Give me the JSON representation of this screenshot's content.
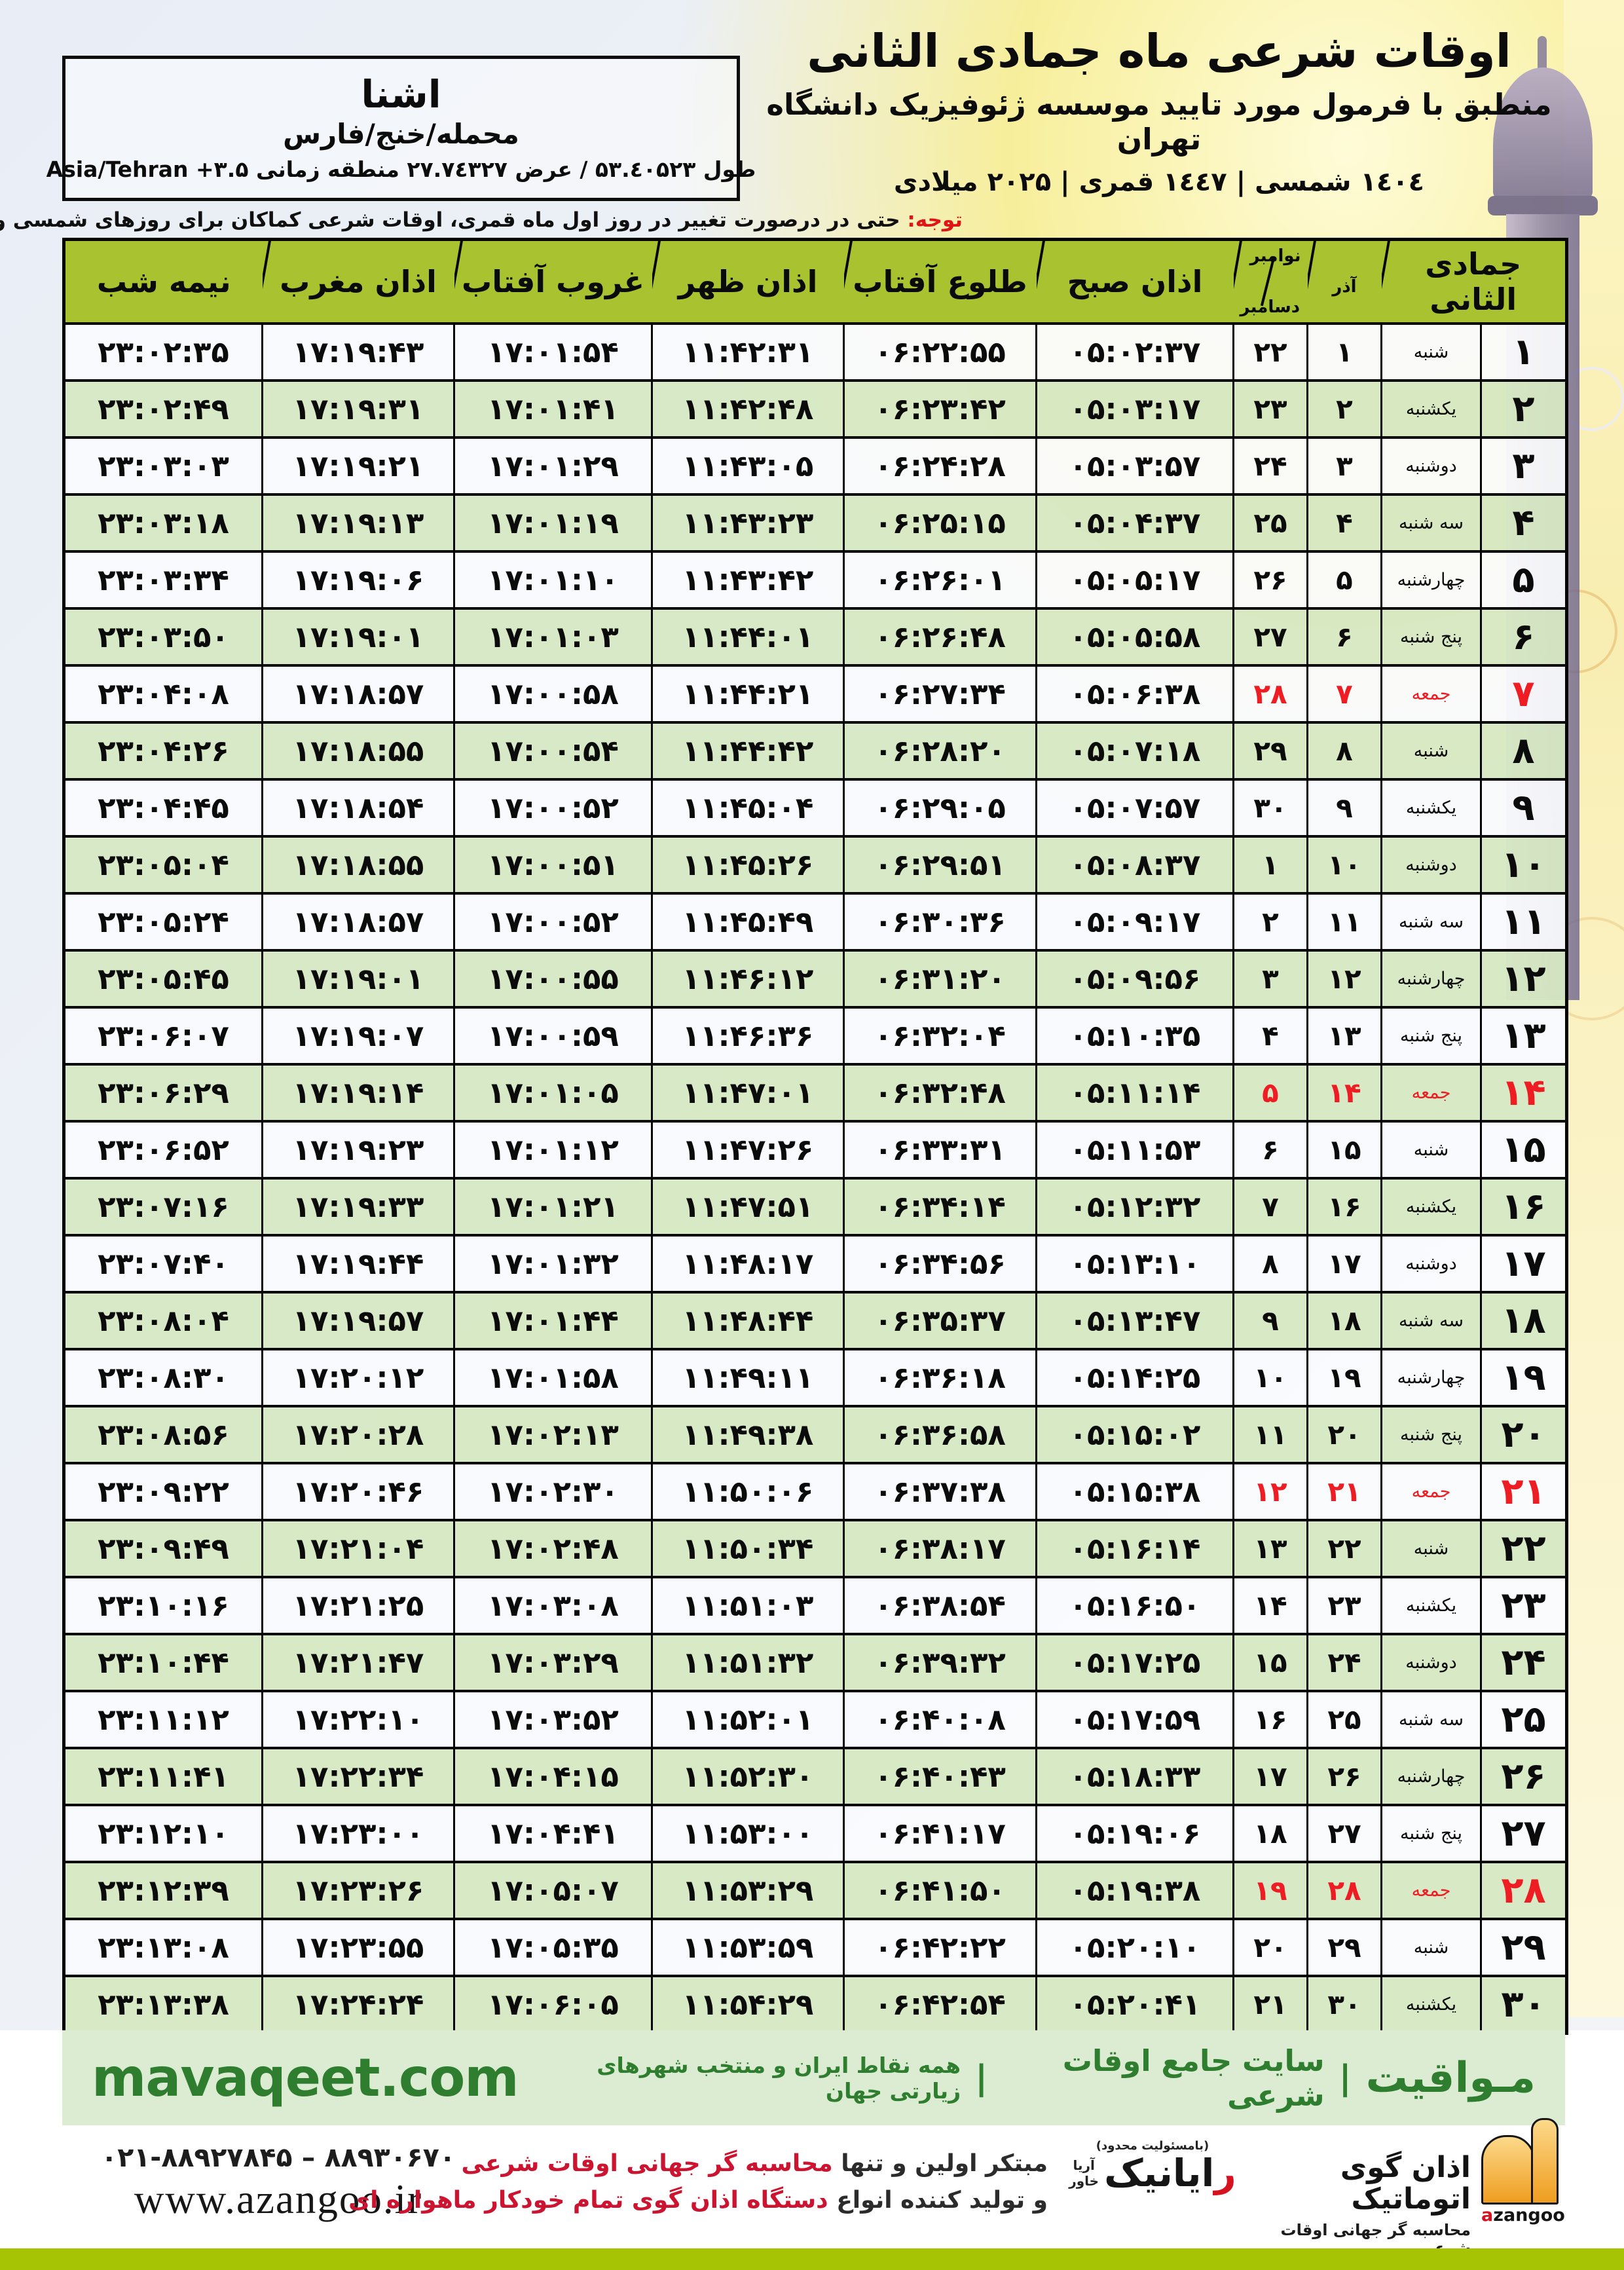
{
  "location": {
    "name": "اشنا",
    "region": "محمله/خنج/فارس",
    "coords_fa": "طول ۵۳.٤۰۵۲۳ / عرض ۲۷.۷٤۳۲۷ منطقه زمانی",
    "coords_en": "Asia/Tehran +۳.۵"
  },
  "title": {
    "main": "اوقات شرعی ماه جمادی الثانی",
    "subtitle": "منطبق با فرمول مورد تایید موسسه ژئوفیزیک دانشگاه تهران",
    "years": "۱٤۰٤ شمسی | ۱٤٤۷ قمری | ۲۰۲۵ میلادی"
  },
  "notice": {
    "label": "توجه:",
    "text": " حتی در درصورت تغییر در روز اول ماه قمری، اوقات شرعی کماکان برای روزهای شمسی و میلادی معتبر است."
  },
  "table": {
    "headers": {
      "jamadi": "جمادی الثانی",
      "azar": "آذر",
      "nov": "نوامبر",
      "dec": "دسامبر",
      "sobh": "اذان صبح",
      "tolu": "طلوع آفتاب",
      "zohr": "اذان ظهر",
      "ghorub": "غروب آفتاب",
      "maghreb": "اذان مغرب",
      "nimeshab": "نیمه شب"
    },
    "rows": [
      {
        "jamadi": "۱",
        "weekday": "شنبه",
        "azar": "۱",
        "novdec": "۲۲",
        "sobh": "۰۵:۰۲:۳۷",
        "tolu": "۰۶:۲۲:۵۵",
        "zohr": "۱۱:۴۲:۳۱",
        "ghorub": "۱۷:۰۱:۵۴",
        "maghreb": "۱۷:۱۹:۴۳",
        "nimeshab": "۲۳:۰۲:۳۵",
        "friday": false
      },
      {
        "jamadi": "۲",
        "weekday": "یکشنبه",
        "azar": "۲",
        "novdec": "۲۳",
        "sobh": "۰۵:۰۳:۱۷",
        "tolu": "۰۶:۲۳:۴۲",
        "zohr": "۱۱:۴۲:۴۸",
        "ghorub": "۱۷:۰۱:۴۱",
        "maghreb": "۱۷:۱۹:۳۱",
        "nimeshab": "۲۳:۰۲:۴۹",
        "friday": false
      },
      {
        "jamadi": "۳",
        "weekday": "دوشنبه",
        "azar": "۳",
        "novdec": "۲۴",
        "sobh": "۰۵:۰۳:۵۷",
        "tolu": "۰۶:۲۴:۲۸",
        "zohr": "۱۱:۴۳:۰۵",
        "ghorub": "۱۷:۰۱:۲۹",
        "maghreb": "۱۷:۱۹:۲۱",
        "nimeshab": "۲۳:۰۳:۰۳",
        "friday": false
      },
      {
        "jamadi": "۴",
        "weekday": "سه شنبه",
        "azar": "۴",
        "novdec": "۲۵",
        "sobh": "۰۵:۰۴:۳۷",
        "tolu": "۰۶:۲۵:۱۵",
        "zohr": "۱۱:۴۳:۲۳",
        "ghorub": "۱۷:۰۱:۱۹",
        "maghreb": "۱۷:۱۹:۱۳",
        "nimeshab": "۲۳:۰۳:۱۸",
        "friday": false
      },
      {
        "jamadi": "۵",
        "weekday": "چهارشنبه",
        "azar": "۵",
        "novdec": "۲۶",
        "sobh": "۰۵:۰۵:۱۷",
        "tolu": "۰۶:۲۶:۰۱",
        "zohr": "۱۱:۴۳:۴۲",
        "ghorub": "۱۷:۰۱:۱۰",
        "maghreb": "۱۷:۱۹:۰۶",
        "nimeshab": "۲۳:۰۳:۳۴",
        "friday": false
      },
      {
        "jamadi": "۶",
        "weekday": "پنج شنبه",
        "azar": "۶",
        "novdec": "۲۷",
        "sobh": "۰۵:۰۵:۵۸",
        "tolu": "۰۶:۲۶:۴۸",
        "zohr": "۱۱:۴۴:۰۱",
        "ghorub": "۱۷:۰۱:۰۳",
        "maghreb": "۱۷:۱۹:۰۱",
        "nimeshab": "۲۳:۰۳:۵۰",
        "friday": false
      },
      {
        "jamadi": "۷",
        "weekday": "جمعه",
        "azar": "۷",
        "novdec": "۲۸",
        "sobh": "۰۵:۰۶:۳۸",
        "tolu": "۰۶:۲۷:۳۴",
        "zohr": "۱۱:۴۴:۲۱",
        "ghorub": "۱۷:۰۰:۵۸",
        "maghreb": "۱۷:۱۸:۵۷",
        "nimeshab": "۲۳:۰۴:۰۸",
        "friday": true
      },
      {
        "jamadi": "۸",
        "weekday": "شنبه",
        "azar": "۸",
        "novdec": "۲۹",
        "sobh": "۰۵:۰۷:۱۸",
        "tolu": "۰۶:۲۸:۲۰",
        "zohr": "۱۱:۴۴:۴۲",
        "ghorub": "۱۷:۰۰:۵۴",
        "maghreb": "۱۷:۱۸:۵۵",
        "nimeshab": "۲۳:۰۴:۲۶",
        "friday": false
      },
      {
        "jamadi": "۹",
        "weekday": "یکشنبه",
        "azar": "۹",
        "novdec": "۳۰",
        "sobh": "۰۵:۰۷:۵۷",
        "tolu": "۰۶:۲۹:۰۵",
        "zohr": "۱۱:۴۵:۰۴",
        "ghorub": "۱۷:۰۰:۵۲",
        "maghreb": "۱۷:۱۸:۵۴",
        "nimeshab": "۲۳:۰۴:۴۵",
        "friday": false
      },
      {
        "jamadi": "۱۰",
        "weekday": "دوشنبه",
        "azar": "۱۰",
        "novdec": "۱",
        "sobh": "۰۵:۰۸:۳۷",
        "tolu": "۰۶:۲۹:۵۱",
        "zohr": "۱۱:۴۵:۲۶",
        "ghorub": "۱۷:۰۰:۵۱",
        "maghreb": "۱۷:۱۸:۵۵",
        "nimeshab": "۲۳:۰۵:۰۴",
        "friday": false
      },
      {
        "jamadi": "۱۱",
        "weekday": "سه شنبه",
        "azar": "۱۱",
        "novdec": "۲",
        "sobh": "۰۵:۰۹:۱۷",
        "tolu": "۰۶:۳۰:۳۶",
        "zohr": "۱۱:۴۵:۴۹",
        "ghorub": "۱۷:۰۰:۵۲",
        "maghreb": "۱۷:۱۸:۵۷",
        "nimeshab": "۲۳:۰۵:۲۴",
        "friday": false
      },
      {
        "jamadi": "۱۲",
        "weekday": "چهارشنبه",
        "azar": "۱۲",
        "novdec": "۳",
        "sobh": "۰۵:۰۹:۵۶",
        "tolu": "۰۶:۳۱:۲۰",
        "zohr": "۱۱:۴۶:۱۲",
        "ghorub": "۱۷:۰۰:۵۵",
        "maghreb": "۱۷:۱۹:۰۱",
        "nimeshab": "۲۳:۰۵:۴۵",
        "friday": false
      },
      {
        "jamadi": "۱۳",
        "weekday": "پنج شنبه",
        "azar": "۱۳",
        "novdec": "۴",
        "sobh": "۰۵:۱۰:۳۵",
        "tolu": "۰۶:۳۲:۰۴",
        "zohr": "۱۱:۴۶:۳۶",
        "ghorub": "۱۷:۰۰:۵۹",
        "maghreb": "۱۷:۱۹:۰۷",
        "nimeshab": "۲۳:۰۶:۰۷",
        "friday": false
      },
      {
        "jamadi": "۱۴",
        "weekday": "جمعه",
        "azar": "۱۴",
        "novdec": "۵",
        "sobh": "۰۵:۱۱:۱۴",
        "tolu": "۰۶:۳۲:۴۸",
        "zohr": "۱۱:۴۷:۰۱",
        "ghorub": "۱۷:۰۱:۰۵",
        "maghreb": "۱۷:۱۹:۱۴",
        "nimeshab": "۲۳:۰۶:۲۹",
        "friday": true
      },
      {
        "jamadi": "۱۵",
        "weekday": "شنبه",
        "azar": "۱۵",
        "novdec": "۶",
        "sobh": "۰۵:۱۱:۵۳",
        "tolu": "۰۶:۳۳:۳۱",
        "zohr": "۱۱:۴۷:۲۶",
        "ghorub": "۱۷:۰۱:۱۲",
        "maghreb": "۱۷:۱۹:۲۳",
        "nimeshab": "۲۳:۰۶:۵۲",
        "friday": false
      },
      {
        "jamadi": "۱۶",
        "weekday": "یکشنبه",
        "azar": "۱۶",
        "novdec": "۷",
        "sobh": "۰۵:۱۲:۳۲",
        "tolu": "۰۶:۳۴:۱۴",
        "zohr": "۱۱:۴۷:۵۱",
        "ghorub": "۱۷:۰۱:۲۱",
        "maghreb": "۱۷:۱۹:۳۳",
        "nimeshab": "۲۳:۰۷:۱۶",
        "friday": false
      },
      {
        "jamadi": "۱۷",
        "weekday": "دوشنبه",
        "azar": "۱۷",
        "novdec": "۸",
        "sobh": "۰۵:۱۳:۱۰",
        "tolu": "۰۶:۳۴:۵۶",
        "zohr": "۱۱:۴۸:۱۷",
        "ghorub": "۱۷:۰۱:۳۲",
        "maghreb": "۱۷:۱۹:۴۴",
        "nimeshab": "۲۳:۰۷:۴۰",
        "friday": false
      },
      {
        "jamadi": "۱۸",
        "weekday": "سه شنبه",
        "azar": "۱۸",
        "novdec": "۹",
        "sobh": "۰۵:۱۳:۴۷",
        "tolu": "۰۶:۳۵:۳۷",
        "zohr": "۱۱:۴۸:۴۴",
        "ghorub": "۱۷:۰۱:۴۴",
        "maghreb": "۱۷:۱۹:۵۷",
        "nimeshab": "۲۳:۰۸:۰۴",
        "friday": false
      },
      {
        "jamadi": "۱۹",
        "weekday": "چهارشنبه",
        "azar": "۱۹",
        "novdec": "۱۰",
        "sobh": "۰۵:۱۴:۲۵",
        "tolu": "۰۶:۳۶:۱۸",
        "zohr": "۱۱:۴۹:۱۱",
        "ghorub": "۱۷:۰۱:۵۸",
        "maghreb": "۱۷:۲۰:۱۲",
        "nimeshab": "۲۳:۰۸:۳۰",
        "friday": false
      },
      {
        "jamadi": "۲۰",
        "weekday": "پنج شنبه",
        "azar": "۲۰",
        "novdec": "۱۱",
        "sobh": "۰۵:۱۵:۰۲",
        "tolu": "۰۶:۳۶:۵۸",
        "zohr": "۱۱:۴۹:۳۸",
        "ghorub": "۱۷:۰۲:۱۳",
        "maghreb": "۱۷:۲۰:۲۸",
        "nimeshab": "۲۳:۰۸:۵۶",
        "friday": false
      },
      {
        "jamadi": "۲۱",
        "weekday": "جمعه",
        "azar": "۲۱",
        "novdec": "۱۲",
        "sobh": "۰۵:۱۵:۳۸",
        "tolu": "۰۶:۳۷:۳۸",
        "zohr": "۱۱:۵۰:۰۶",
        "ghorub": "۱۷:۰۲:۳۰",
        "maghreb": "۱۷:۲۰:۴۶",
        "nimeshab": "۲۳:۰۹:۲۲",
        "friday": true
      },
      {
        "jamadi": "۲۲",
        "weekday": "شنبه",
        "azar": "۲۲",
        "novdec": "۱۳",
        "sobh": "۰۵:۱۶:۱۴",
        "tolu": "۰۶:۳۸:۱۷",
        "zohr": "۱۱:۵۰:۳۴",
        "ghorub": "۱۷:۰۲:۴۸",
        "maghreb": "۱۷:۲۱:۰۴",
        "nimeshab": "۲۳:۰۹:۴۹",
        "friday": false
      },
      {
        "jamadi": "۲۳",
        "weekday": "یکشنبه",
        "azar": "۲۳",
        "novdec": "۱۴",
        "sobh": "۰۵:۱۶:۵۰",
        "tolu": "۰۶:۳۸:۵۴",
        "zohr": "۱۱:۵۱:۰۳",
        "ghorub": "۱۷:۰۳:۰۸",
        "maghreb": "۱۷:۲۱:۲۵",
        "nimeshab": "۲۳:۱۰:۱۶",
        "friday": false
      },
      {
        "jamadi": "۲۴",
        "weekday": "دوشنبه",
        "azar": "۲۴",
        "novdec": "۱۵",
        "sobh": "۰۵:۱۷:۲۵",
        "tolu": "۰۶:۳۹:۳۲",
        "zohr": "۱۱:۵۱:۳۲",
        "ghorub": "۱۷:۰۳:۲۹",
        "maghreb": "۱۷:۲۱:۴۷",
        "nimeshab": "۲۳:۱۰:۴۴",
        "friday": false
      },
      {
        "jamadi": "۲۵",
        "weekday": "سه شنبه",
        "azar": "۲۵",
        "novdec": "۱۶",
        "sobh": "۰۵:۱۷:۵۹",
        "tolu": "۰۶:۴۰:۰۸",
        "zohr": "۱۱:۵۲:۰۱",
        "ghorub": "۱۷:۰۳:۵۲",
        "maghreb": "۱۷:۲۲:۱۰",
        "nimeshab": "۲۳:۱۱:۱۲",
        "friday": false
      },
      {
        "jamadi": "۲۶",
        "weekday": "چهارشنبه",
        "azar": "۲۶",
        "novdec": "۱۷",
        "sobh": "۰۵:۱۸:۳۳",
        "tolu": "۰۶:۴۰:۴۳",
        "zohr": "۱۱:۵۲:۳۰",
        "ghorub": "۱۷:۰۴:۱۵",
        "maghreb": "۱۷:۲۲:۳۴",
        "nimeshab": "۲۳:۱۱:۴۱",
        "friday": false
      },
      {
        "jamadi": "۲۷",
        "weekday": "پنج شنبه",
        "azar": "۲۷",
        "novdec": "۱۸",
        "sobh": "۰۵:۱۹:۰۶",
        "tolu": "۰۶:۴۱:۱۷",
        "zohr": "۱۱:۵۳:۰۰",
        "ghorub": "۱۷:۰۴:۴۱",
        "maghreb": "۱۷:۲۳:۰۰",
        "nimeshab": "۲۳:۱۲:۱۰",
        "friday": false
      },
      {
        "jamadi": "۲۸",
        "weekday": "جمعه",
        "azar": "۲۸",
        "novdec": "۱۹",
        "sobh": "۰۵:۱۹:۳۸",
        "tolu": "۰۶:۴۱:۵۰",
        "zohr": "۱۱:۵۳:۲۹",
        "ghorub": "۱۷:۰۵:۰۷",
        "maghreb": "۱۷:۲۳:۲۶",
        "nimeshab": "۲۳:۱۲:۳۹",
        "friday": true
      },
      {
        "jamadi": "۲۹",
        "weekday": "شنبه",
        "azar": "۲۹",
        "novdec": "۲۰",
        "sobh": "۰۵:۲۰:۱۰",
        "tolu": "۰۶:۴۲:۲۲",
        "zohr": "۱۱:۵۳:۵۹",
        "ghorub": "۱۷:۰۵:۳۵",
        "maghreb": "۱۷:۲۳:۵۵",
        "nimeshab": "۲۳:۱۳:۰۸",
        "friday": false
      },
      {
        "jamadi": "۳۰",
        "weekday": "یکشنبه",
        "azar": "۳۰",
        "novdec": "۲۱",
        "sobh": "۰۵:۲۰:۴۱",
        "tolu": "۰۶:۴۲:۵۴",
        "zohr": "۱۱:۵۴:۲۹",
        "ghorub": "۱۷:۰۶:۰۵",
        "maghreb": "۱۷:۲۴:۲۴",
        "nimeshab": "۲۳:۱۳:۳۸",
        "friday": false
      }
    ]
  },
  "mavaqeet": {
    "brand": "مـواقیت",
    "divider": "|",
    "site_desc": "سایت جامع اوقات شرعی",
    "coverage": "همه نقاط ایران و منتخب شهرهای زیارتی جهان",
    "url": "mavaqeet.com"
  },
  "footer": {
    "phone": "۰۲۱-۸۸۹۲۷۸۴۵ – ۸۸۹۳۰۶۷۰",
    "website": "www.azangoo.ir",
    "line1_black": "مبتکر اولین و تنها ",
    "line1_red": "محاسبه گر جهانی اوقات شرعی",
    "line2_black": "و تولید کننده انواع ",
    "line2_red": "دستگاه اذان گوی تمام خودکار ماهواره ای",
    "rayanik_note": "(بامسئولیت محدود)",
    "rayanik_sub_top": "آریا",
    "rayanik_sub_bottom": "خاور",
    "rayanik_red": "ر",
    "rayanik_black": "ایانیک",
    "azangoo_title": "اذان گوی اتوماتیک",
    "azangoo_sub": "محاسبه گر جهانی اوقات شرعی",
    "azangoo_latin_a": "a",
    "azangoo_latin_rest": "zangoo"
  },
  "colors": {
    "header_green": "#a9c230",
    "row_green": "#d6e8c3",
    "friday_red": "#ee1c23",
    "band_green": "#dcecd3",
    "brand_green": "#2f7d2f",
    "bottom_bar_green": "#a6c403",
    "notice_red": "#e01414"
  }
}
